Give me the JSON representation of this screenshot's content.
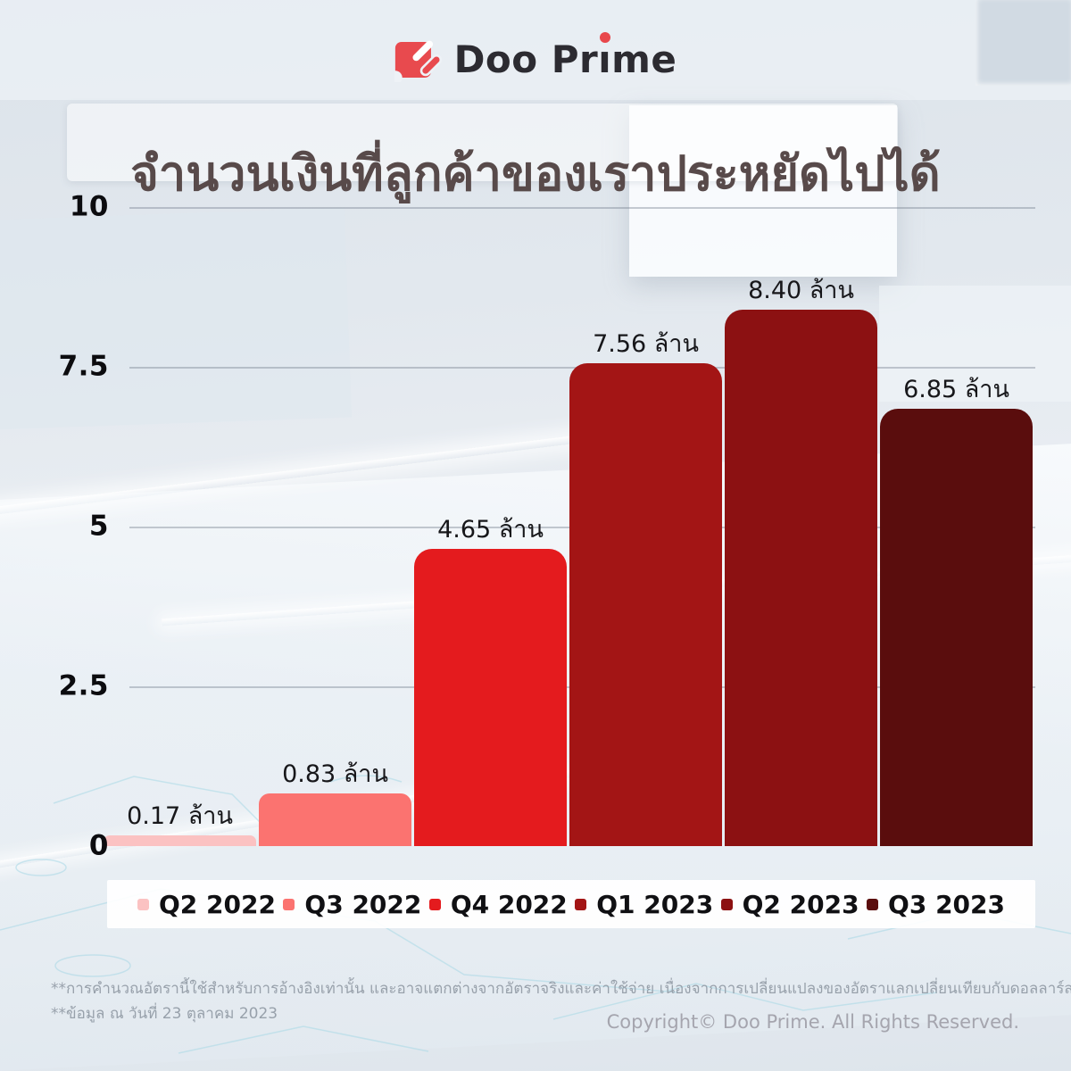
{
  "header": {
    "logo_text": "Doo Prime",
    "logo_render": {
      "pre": "Doo Pr",
      "i": "ı",
      "post": "me"
    },
    "brand_color": "#E8474B"
  },
  "title": "จำนวนเงินที่ลูกค้าของเราประหยัดไปได้",
  "chart_data": {
    "type": "bar",
    "title": "จำนวนเงินที่ลูกค้าของเราประหยัดไปได้",
    "unit": "ล้าน",
    "categories": [
      "Q2 2022",
      "Q3 2022",
      "Q4 2022",
      "Q1 2023",
      "Q2 2023",
      "Q3 2023"
    ],
    "values": [
      0.17,
      0.83,
      4.65,
      7.56,
      8.4,
      6.85
    ],
    "bar_labels": [
      "0.17 ล้าน",
      "0.83 ล้าน",
      "4.65 ล้าน",
      "7.56 ล้าน",
      "8.40 ล้าน",
      "6.85 ล้าน"
    ],
    "colors": [
      "#FBC2C2",
      "#FB7370",
      "#E41B1E",
      "#A31515",
      "#8C1112",
      "#5A0D0D"
    ],
    "ylim": [
      0,
      10
    ],
    "yticks": [
      0,
      2.5,
      5,
      7.5,
      10
    ],
    "ytick_labels": [
      "0",
      "2.5",
      "5",
      "7.5",
      "10"
    ],
    "grid": true,
    "legend_position": "bottom"
  },
  "footer": {
    "note1": "**การคำนวณอัตรานี้ใช้สำหรับการอ้างอิงเท่านั้น และอาจแตกต่างจากอัตราจริงและค่าใช้จ่าย เนื่องจากการเปลี่ยนแปลงของอัตราแลกเปลี่ยนเทียบกับดอลลาร์สหรัฐ",
    "note2": "**ข้อมูล ณ วันที่ 23 ตุลาคม 2023",
    "copyright": "Copyright© Doo Prime. All Rights Reserved."
  }
}
